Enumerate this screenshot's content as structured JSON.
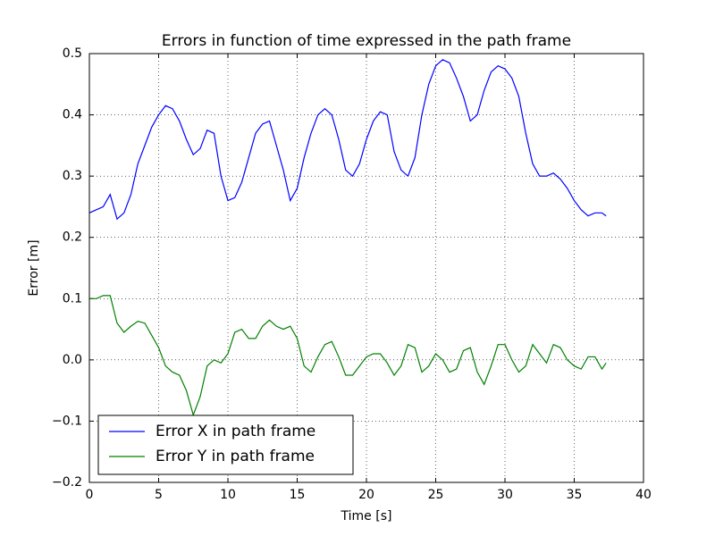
{
  "chart_data": {
    "type": "line",
    "title": "Errors in function of time expressed in the path frame",
    "x_label": "Time [s]",
    "y_label": "Error [m]",
    "x": [
      0,
      0.5,
      1,
      1.5,
      2,
      2.5,
      3,
      3.5,
      4,
      4.5,
      5,
      5.5,
      6,
      6.5,
      7,
      7.5,
      8,
      8.5,
      9,
      9.5,
      10,
      10.5,
      11,
      11.5,
      12,
      12.5,
      13,
      13.5,
      14,
      14.5,
      15,
      15.5,
      16,
      16.5,
      17,
      17.5,
      18,
      18.5,
      19,
      19.5,
      20,
      20.5,
      21,
      21.5,
      22,
      22.5,
      23,
      23.5,
      24,
      24.5,
      25,
      25.5,
      26,
      26.5,
      27,
      27.5,
      28,
      28.5,
      29,
      29.5,
      30,
      30.5,
      31,
      31.5,
      32,
      32.5,
      33,
      33.5,
      34,
      34.5,
      35,
      35.5,
      36,
      36.5,
      37,
      37.3
    ],
    "series": [
      {
        "name": "Error X in path frame",
        "color": "#0000ff",
        "values": [
          0.24,
          0.245,
          0.25,
          0.27,
          0.23,
          0.24,
          0.27,
          0.32,
          0.35,
          0.38,
          0.4,
          0.415,
          0.41,
          0.39,
          0.36,
          0.335,
          0.345,
          0.375,
          0.37,
          0.3,
          0.26,
          0.265,
          0.29,
          0.33,
          0.37,
          0.385,
          0.39,
          0.35,
          0.31,
          0.26,
          0.28,
          0.33,
          0.37,
          0.4,
          0.41,
          0.4,
          0.36,
          0.31,
          0.3,
          0.32,
          0.36,
          0.39,
          0.405,
          0.4,
          0.34,
          0.31,
          0.3,
          0.33,
          0.4,
          0.45,
          0.48,
          0.49,
          0.485,
          0.46,
          0.43,
          0.39,
          0.4,
          0.44,
          0.47,
          0.48,
          0.475,
          0.46,
          0.43,
          0.37,
          0.32,
          0.3,
          0.3,
          0.305,
          0.295,
          0.28,
          0.26,
          0.245,
          0.235,
          0.24,
          0.24,
          0.235
        ]
      },
      {
        "name": "Error Y in path frame",
        "color": "#008000",
        "values": [
          0.1,
          0.1,
          0.105,
          0.105,
          0.06,
          0.045,
          0.055,
          0.063,
          0.06,
          0.04,
          0.02,
          -0.01,
          -0.02,
          -0.025,
          -0.05,
          -0.09,
          -0.06,
          -0.01,
          0.0,
          -0.005,
          0.01,
          0.045,
          0.05,
          0.035,
          0.035,
          0.055,
          0.065,
          0.055,
          0.05,
          0.055,
          0.035,
          -0.01,
          -0.02,
          0.005,
          0.025,
          0.03,
          0.005,
          -0.025,
          -0.025,
          -0.01,
          0.005,
          0.01,
          0.01,
          -0.005,
          -0.025,
          -0.01,
          0.025,
          0.02,
          -0.02,
          -0.01,
          0.01,
          0.0,
          -0.02,
          -0.015,
          0.015,
          0.02,
          -0.02,
          -0.04,
          -0.01,
          0.025,
          0.025,
          0.0,
          -0.02,
          -0.01,
          0.025,
          0.01,
          -0.005,
          0.025,
          0.02,
          0.0,
          -0.01,
          -0.015,
          0.005,
          0.005,
          -0.015,
          -0.005
        ]
      }
    ],
    "xlim": [
      0,
      40
    ],
    "xticks": [
      0,
      5,
      10,
      15,
      20,
      25,
      30,
      35,
      40
    ],
    "ylim": [
      -0.2,
      0.5
    ],
    "yticks": [
      {
        "value": -0.2,
        "label": "−0.2"
      },
      {
        "value": -0.1,
        "label": "−0.1"
      },
      {
        "value": 0.0,
        "label": "0.0"
      },
      0.1,
      0.2,
      0.3,
      0.4,
      0.5
    ],
    "grid": true,
    "legend": "lower left"
  }
}
